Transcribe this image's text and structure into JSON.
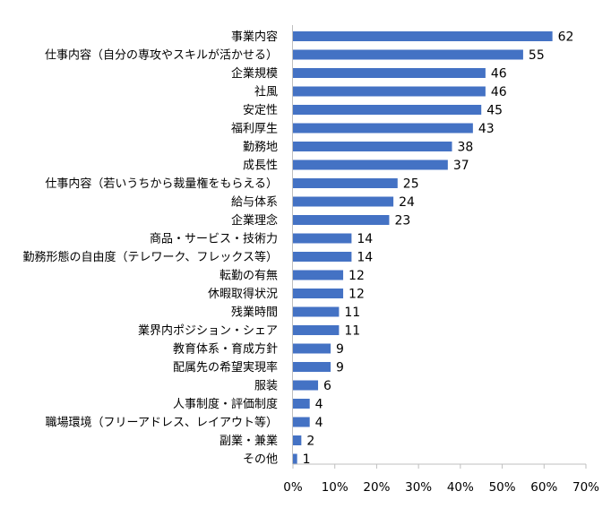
{
  "chart_data": {
    "type": "bar",
    "orientation": "horizontal",
    "categories": [
      "事業内容",
      "仕事内容（自分の専攻やスキルが活かせる）",
      "企業規模",
      "社風",
      "安定性",
      "福利厚生",
      "勤務地",
      "成長性",
      "仕事内容（若いうちから裁量権をもらえる）",
      "給与体系",
      "企業理念",
      "商品・サービス・技術力",
      "勤務形態の自由度（テレワーク、フレックス等）",
      "転勤の有無",
      "休暇取得状況",
      "残業時間",
      "業界内ポジション・シェア",
      "教育体系・育成方針",
      "配属先の希望実現率",
      "服装",
      "人事制度・評価制度",
      "職場環境（フリーアドレス、レイアウト等）",
      "副業・兼業",
      "その他"
    ],
    "values": [
      62,
      55,
      46,
      46,
      45,
      43,
      38,
      37,
      25,
      24,
      23,
      14,
      14,
      12,
      12,
      11,
      11,
      9,
      9,
      6,
      4,
      4,
      2,
      1
    ],
    "value_labels": [
      "62",
      "55",
      "46",
      "46",
      "45",
      "43",
      "38",
      "37",
      "25",
      "24",
      "23",
      "14",
      "14",
      "12",
      "12",
      "11",
      "11",
      "9",
      "9",
      "6",
      "4",
      "4",
      "2",
      "1"
    ],
    "xlim": [
      0,
      70
    ],
    "xticks": [
      0,
      10,
      20,
      30,
      40,
      50,
      60,
      70
    ],
    "xtick_labels": [
      "0%",
      "10%",
      "20%",
      "30%",
      "40%",
      "50%",
      "60%",
      "70%"
    ],
    "grid": false,
    "legend": "none",
    "bar_color": "#4472C4"
  }
}
